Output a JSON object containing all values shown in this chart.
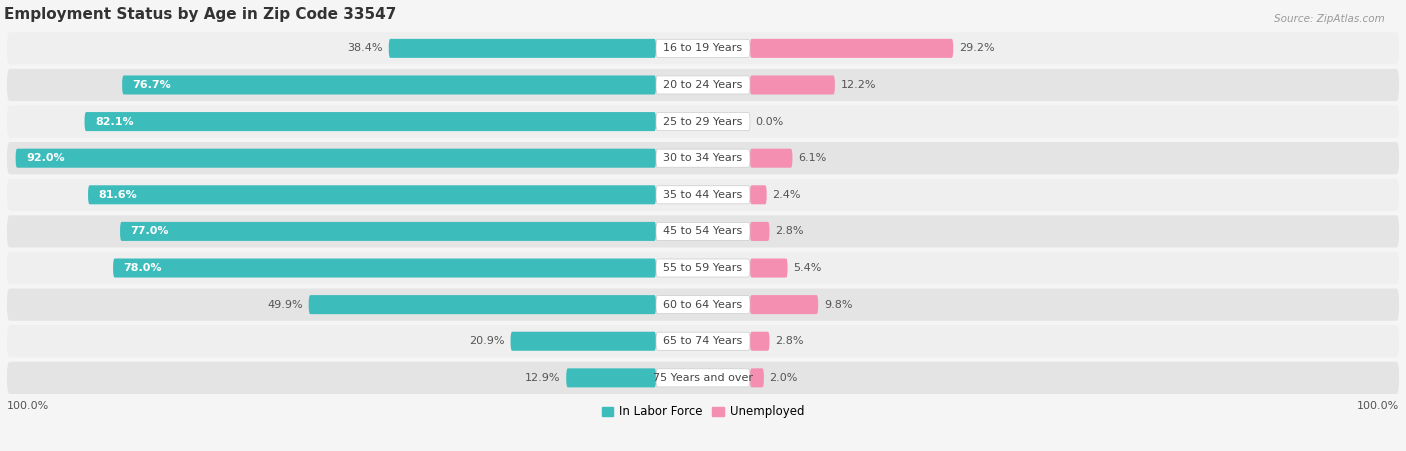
{
  "title": "Employment Status by Age in Zip Code 33547",
  "source": "Source: ZipAtlas.com",
  "categories": [
    "16 to 19 Years",
    "20 to 24 Years",
    "25 to 29 Years",
    "30 to 34 Years",
    "35 to 44 Years",
    "45 to 54 Years",
    "55 to 59 Years",
    "60 to 64 Years",
    "65 to 74 Years",
    "75 Years and over"
  ],
  "in_labor_force": [
    38.4,
    76.7,
    82.1,
    92.0,
    81.6,
    77.0,
    78.0,
    49.9,
    20.9,
    12.9
  ],
  "unemployed": [
    29.2,
    12.2,
    0.0,
    6.1,
    2.4,
    2.8,
    5.4,
    9.8,
    2.8,
    2.0
  ],
  "labor_color": "#3dbcbc",
  "unemployed_color": "#f48fb1",
  "row_bg_color": "#e8e8e8",
  "title_fontsize": 11,
  "label_fontsize": 8.5,
  "cat_fontsize": 8.0,
  "val_fontsize": 8.0,
  "axis_label_fontsize": 8,
  "legend_fontsize": 8.5,
  "background_color": "#f5f5f5"
}
